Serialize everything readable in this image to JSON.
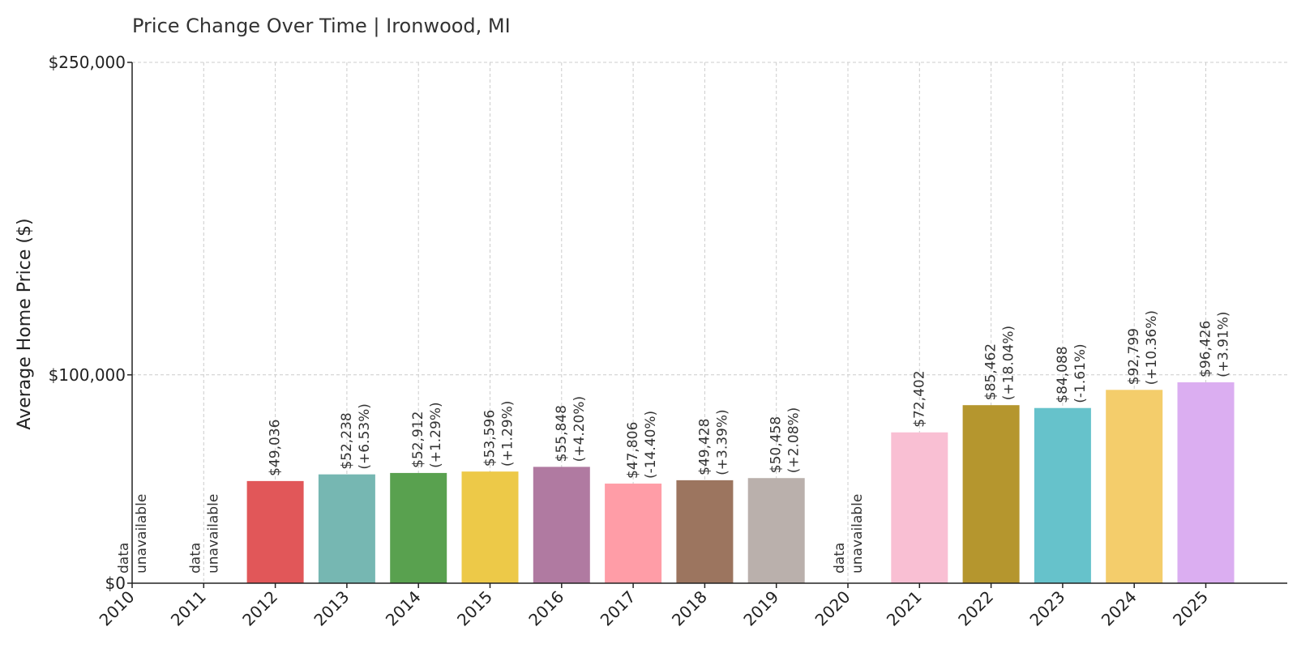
{
  "chart_data": {
    "type": "bar",
    "title": "Price Change Over Time | Ironwood, MI",
    "xlabel": "",
    "ylabel": "Average Home Price ($)",
    "ylim": [
      0,
      250000
    ],
    "yticks": [
      0,
      100000,
      250000
    ],
    "ytick_labels": [
      "$0",
      "$100,000",
      "$250,000"
    ],
    "grid": true,
    "categories": [
      "2010",
      "2011",
      "2012",
      "2013",
      "2014",
      "2015",
      "2016",
      "2017",
      "2018",
      "2019",
      "2020",
      "2021",
      "2022",
      "2023",
      "2024",
      "2025"
    ],
    "values": [
      null,
      null,
      49036,
      52238,
      52912,
      53596,
      55848,
      47806,
      49428,
      50458,
      null,
      72402,
      85462,
      84088,
      92799,
      96426
    ],
    "value_labels": [
      null,
      null,
      "$49,036",
      "$52,238",
      "$52,912",
      "$53,596",
      "$55,848",
      "$47,806",
      "$49,428",
      "$50,458",
      null,
      "$72,402",
      "$85,462",
      "$84,088",
      "$92,799",
      "$96,426"
    ],
    "change_labels": [
      null,
      null,
      null,
      "(+6.53%)",
      "(+1.29%)",
      "(+1.29%)",
      "(+4.20%)",
      "(-14.40%)",
      "(+3.39%)",
      "(+2.08%)",
      null,
      null,
      "(+18.04%)",
      "(-1.61%)",
      "(+10.36%)",
      "(+3.91%)"
    ],
    "unavailable_line1": "data",
    "unavailable_line2": "unavailable",
    "colors": [
      "#e15759",
      "#e15759",
      "#e15759",
      "#76b7b2",
      "#59a14f",
      "#edc948",
      "#b07aa1",
      "#ff9da7",
      "#9c755f",
      "#bab0ac",
      "#bab0ac",
      "#f9bfd3",
      "#b5962e",
      "#66c2cb",
      "#f4cd6b",
      "#dbaef1"
    ]
  }
}
